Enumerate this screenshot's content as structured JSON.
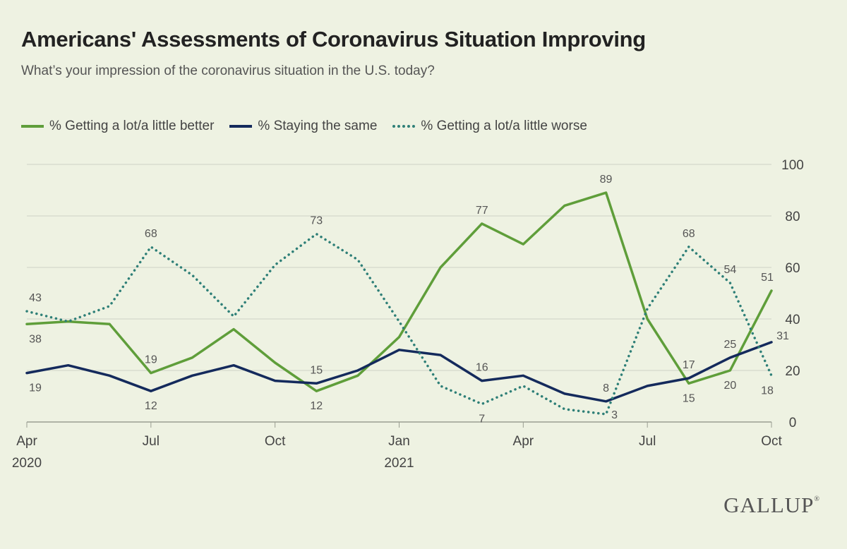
{
  "header": {
    "title": "Americans' Assessments of Coronavirus Situation Improving",
    "subtitle": "What’s your impression of the coronavirus situation in the U.S. today?"
  },
  "brand": {
    "logo_text": "GALLUP",
    "logo_mark": "®"
  },
  "colors": {
    "background": "#eef2e2",
    "better": "#5f9e3a",
    "same": "#142a5c",
    "worse": "#2e7f77",
    "grid": "#cfd3c6"
  },
  "chart_data": {
    "type": "line",
    "title": "Americans' Assessments of Coronavirus Situation Improving",
    "subtitle": "What’s your impression of the coronavirus situation in the U.S. today?",
    "x": [
      "2020-04",
      "2020-05",
      "2020-06",
      "2020-07",
      "2020-08",
      "2020-09",
      "2020-10",
      "2020-11",
      "2020-12",
      "2021-01",
      "2021-02",
      "2021-03",
      "2021-04",
      "2021-05",
      "2021-06",
      "2021-07",
      "2021-08",
      "2021-09",
      "2021-10"
    ],
    "x_tick_labels": [
      {
        "x": "2020-04",
        "label": "Apr",
        "sublabel": "2020"
      },
      {
        "x": "2020-07",
        "label": "Jul",
        "sublabel": ""
      },
      {
        "x": "2020-10",
        "label": "Oct",
        "sublabel": ""
      },
      {
        "x": "2021-01",
        "label": "Jan",
        "sublabel": "2021"
      },
      {
        "x": "2021-04",
        "label": "Apr",
        "sublabel": ""
      },
      {
        "x": "2021-07",
        "label": "Jul",
        "sublabel": ""
      },
      {
        "x": "2021-10",
        "label": "Oct",
        "sublabel": ""
      }
    ],
    "y_ticks": [
      "0",
      "20",
      "40",
      "60",
      "80",
      "100"
    ],
    "ylim": [
      0,
      100
    ],
    "y_axis_side": "right",
    "grid": true,
    "legend_position": "top-left",
    "series": [
      {
        "name": "% Getting a lot/a little better",
        "key": "better",
        "style": "solid",
        "values": [
          38,
          39,
          38,
          19,
          25,
          36,
          23,
          12,
          18,
          33,
          60,
          77,
          69,
          84,
          89,
          40,
          15,
          20,
          51
        ],
        "labels": [
          {
            "x": "2020-04",
            "text": "38",
            "pos": "below"
          },
          {
            "x": "2020-07",
            "text": "19",
            "pos": "above"
          },
          {
            "x": "2020-11",
            "text": "12",
            "pos": "below"
          },
          {
            "x": "2021-03",
            "text": "77",
            "pos": "above"
          },
          {
            "x": "2021-06",
            "text": "89",
            "pos": "above"
          },
          {
            "x": "2021-08",
            "text": "15",
            "pos": "below"
          },
          {
            "x": "2021-09",
            "text": "20",
            "pos": "below"
          },
          {
            "x": "2021-10",
            "text": "51",
            "pos": "above"
          }
        ]
      },
      {
        "name": "% Staying the same",
        "key": "same",
        "style": "solid",
        "values": [
          19,
          22,
          18,
          12,
          18,
          22,
          16,
          15,
          20,
          28,
          26,
          16,
          18,
          11,
          8,
          14,
          17,
          25,
          31
        ],
        "labels": [
          {
            "x": "2020-04",
            "text": "19",
            "pos": "below"
          },
          {
            "x": "2020-07",
            "text": "12",
            "pos": "below"
          },
          {
            "x": "2020-11",
            "text": "15",
            "pos": "above"
          },
          {
            "x": "2021-03",
            "text": "16",
            "pos": "above"
          },
          {
            "x": "2021-06",
            "text": "8",
            "pos": "above"
          },
          {
            "x": "2021-08",
            "text": "17",
            "pos": "above"
          },
          {
            "x": "2021-09",
            "text": "25",
            "pos": "above"
          },
          {
            "x": "2021-10",
            "text": "31",
            "pos": "above-right"
          }
        ]
      },
      {
        "name": "% Getting a lot/a little worse",
        "key": "worse",
        "style": "dotted",
        "values": [
          43,
          39,
          45,
          68,
          57,
          41,
          61,
          73,
          63,
          39,
          14,
          7,
          14,
          5,
          3,
          44,
          68,
          54,
          18
        ],
        "labels": [
          {
            "x": "2020-04",
            "text": "43",
            "pos": "above"
          },
          {
            "x": "2020-07",
            "text": "68",
            "pos": "above"
          },
          {
            "x": "2020-11",
            "text": "73",
            "pos": "above"
          },
          {
            "x": "2021-03",
            "text": "7",
            "pos": "below"
          },
          {
            "x": "2021-06",
            "text": "3",
            "pos": "right"
          },
          {
            "x": "2021-08",
            "text": "68",
            "pos": "above"
          },
          {
            "x": "2021-09",
            "text": "54",
            "pos": "above"
          },
          {
            "x": "2021-10",
            "text": "18",
            "pos": "below"
          }
        ]
      }
    ]
  }
}
